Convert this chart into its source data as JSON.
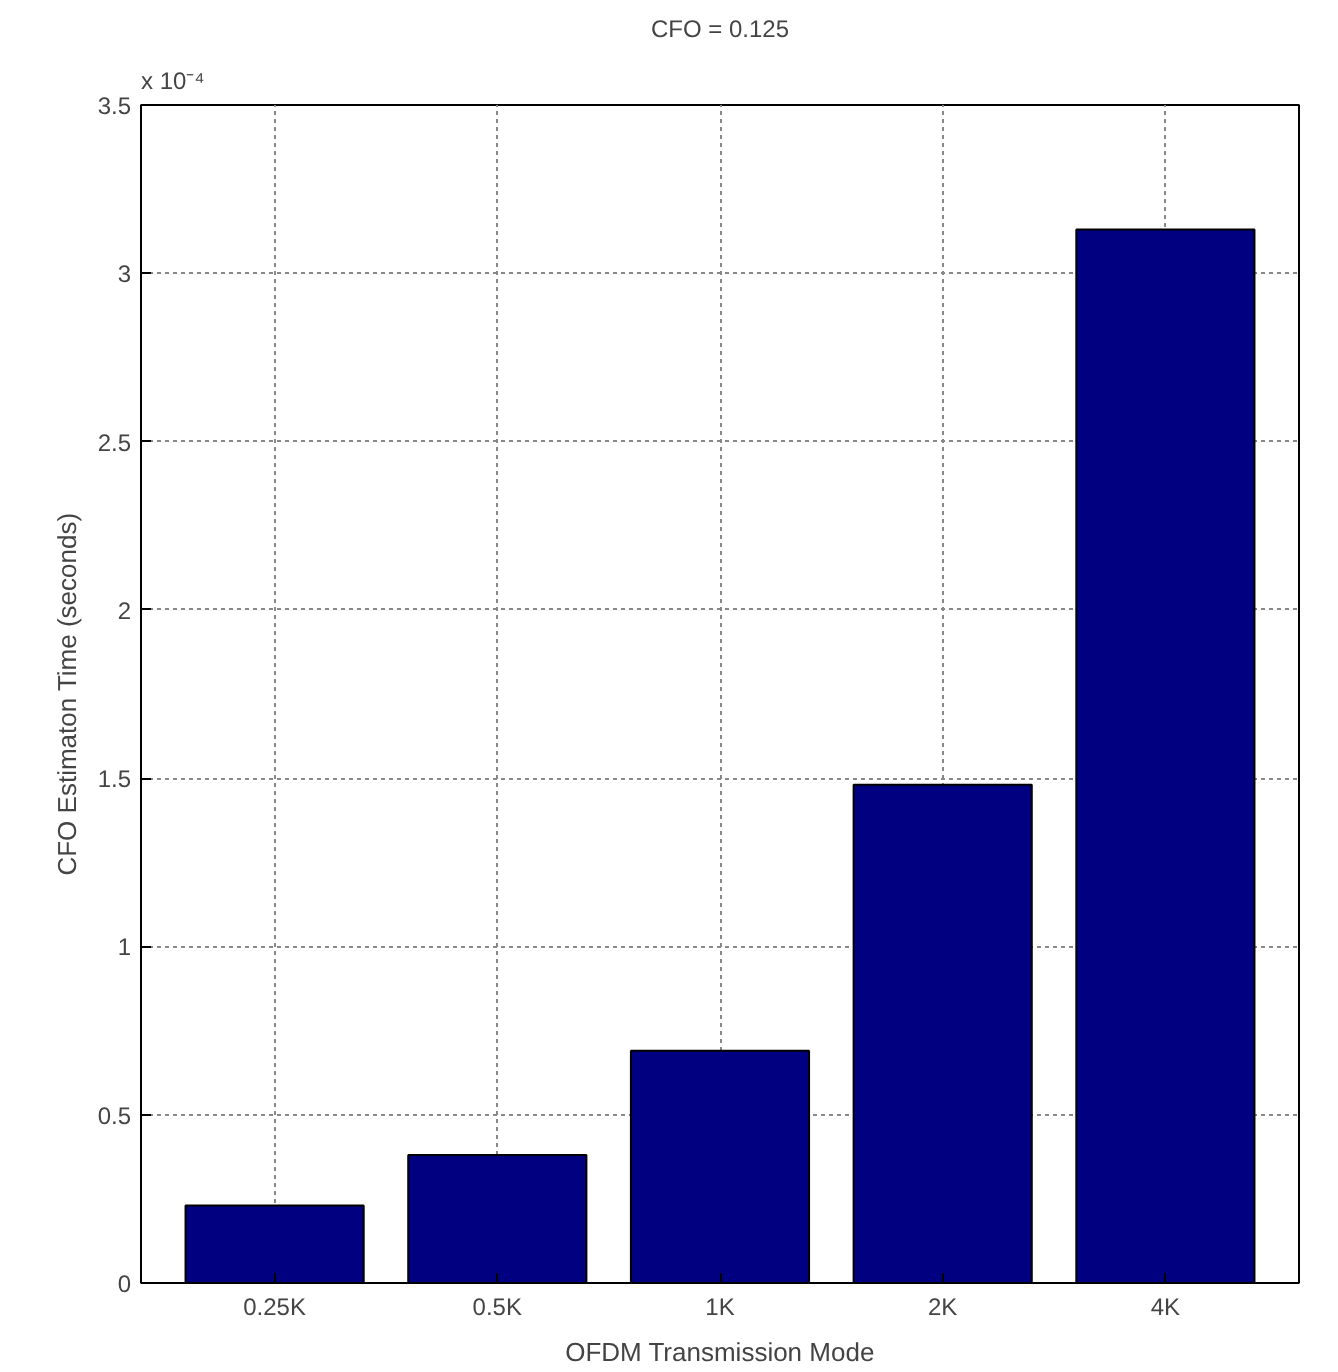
{
  "chart_data": {
    "type": "bar",
    "title": "CFO = 0.125",
    "xlabel": "OFDM Transmission Mode",
    "ylabel": "CFO Estimaton Time (seconds)",
    "categories": [
      "0.25K",
      "0.5K",
      "1K",
      "2K",
      "4K"
    ],
    "values": [
      0.23,
      0.38,
      0.69,
      1.48,
      3.13
    ],
    "color": "#000080",
    "ylim": [
      0,
      3.5
    ],
    "yticks": [
      0,
      0.5,
      1,
      1.5,
      2,
      2.5,
      3,
      3.5
    ],
    "annotations": [
      "x 10⁻⁴"
    ],
    "grid": true
  }
}
